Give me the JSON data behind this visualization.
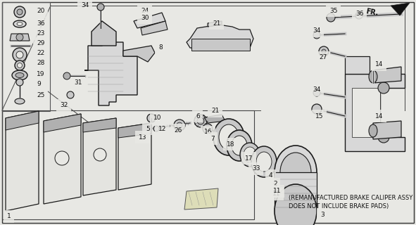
{
  "bg_color": "#e8e8e4",
  "line_color": "#1a1a1a",
  "text_color": "#111111",
  "note_line1": "(REMANUFACTURED BRAKE CALIPER ASSY",
  "note_line2": "DOES NOT INCLUDE BRAKE PADS)",
  "fr_text": "FR.",
  "figsize": [
    5.91,
    3.2
  ],
  "dpi": 100,
  "label_fontsize": 6.5,
  "note_fontsize": 6.0
}
